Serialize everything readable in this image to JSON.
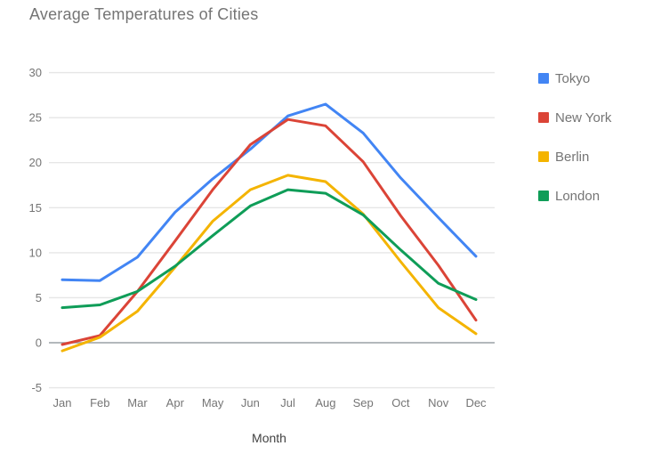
{
  "chart_data": {
    "type": "line",
    "title": "Average Temperatures of Cities",
    "xlabel": "Month",
    "ylabel": "",
    "categories": [
      "Jan",
      "Feb",
      "Mar",
      "Apr",
      "May",
      "Jun",
      "Jul",
      "Aug",
      "Sep",
      "Oct",
      "Nov",
      "Dec"
    ],
    "series": [
      {
        "name": "Tokyo",
        "color": "#4285f4",
        "values": [
          7.0,
          6.9,
          9.5,
          14.5,
          18.2,
          21.5,
          25.2,
          26.5,
          23.3,
          18.3,
          13.9,
          9.6
        ]
      },
      {
        "name": "New York",
        "color": "#db4437",
        "values": [
          -0.2,
          0.8,
          5.7,
          11.3,
          17.0,
          22.0,
          24.8,
          24.1,
          20.1,
          14.1,
          8.6,
          2.5
        ]
      },
      {
        "name": "Berlin",
        "color": "#f4b400",
        "values": [
          -0.9,
          0.6,
          3.5,
          8.4,
          13.5,
          17.0,
          18.6,
          17.9,
          14.3,
          9.0,
          3.9,
          1.0
        ]
      },
      {
        "name": "London",
        "color": "#0f9d58",
        "values": [
          3.9,
          4.2,
          5.7,
          8.5,
          11.9,
          15.2,
          17.0,
          16.6,
          14.2,
          10.3,
          6.6,
          4.8
        ]
      }
    ],
    "yticks": [
      30,
      25,
      20,
      15,
      10,
      5,
      0,
      -5
    ],
    "ylim": [
      -5,
      30
    ],
    "grid": true,
    "legend_position": "right",
    "colors": {
      "title_text": "#757575",
      "axis_tick_text": "#757575",
      "axis_title_text": "#424242",
      "gridline": "#e6e6e6",
      "zero_line": "#9aa0a6",
      "background": "#ffffff"
    }
  }
}
